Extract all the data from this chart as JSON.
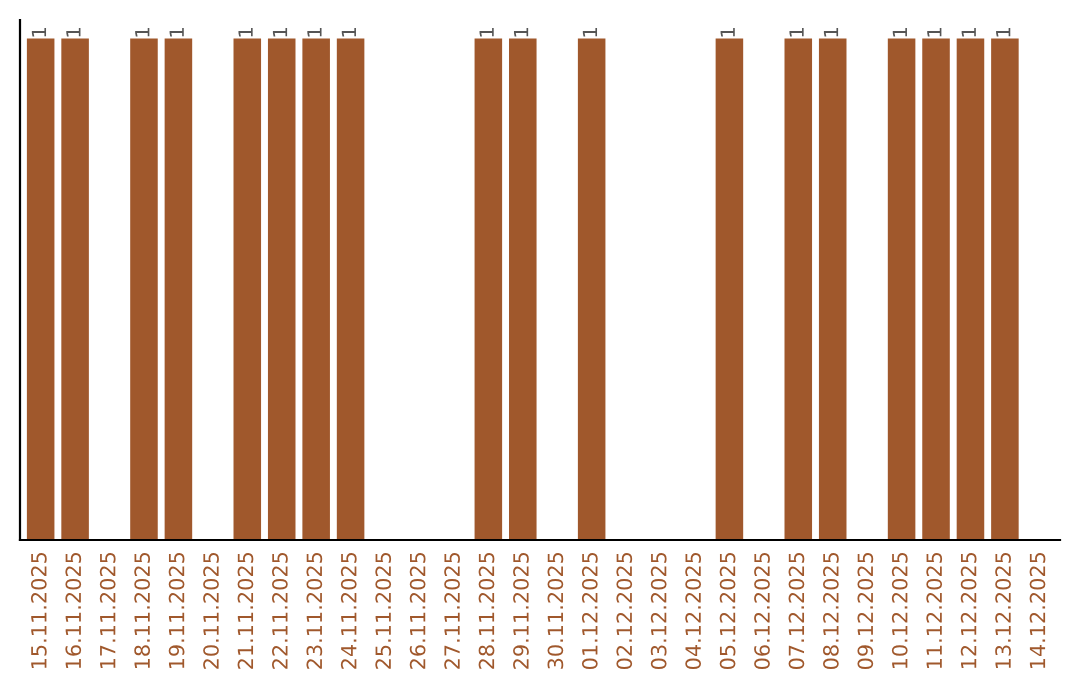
{
  "chart_data": {
    "type": "bar",
    "categories": [
      "15.11.2025",
      "16.11.2025",
      "17.11.2025",
      "18.11.2025",
      "19.11.2025",
      "20.11.2025",
      "21.11.2025",
      "22.11.2025",
      "23.11.2025",
      "24.11.2025",
      "25.11.2025",
      "26.11.2025",
      "27.11.2025",
      "28.11.2025",
      "29.11.2025",
      "30.11.2025",
      "01.12.2025",
      "02.12.2025",
      "03.12.2025",
      "04.12.2025",
      "05.12.2025",
      "06.12.2025",
      "07.12.2025",
      "08.12.2025",
      "09.12.2025",
      "10.12.2025",
      "11.12.2025",
      "12.12.2025",
      "13.12.2025",
      "14.12.2025"
    ],
    "values": [
      1,
      1,
      null,
      1,
      1,
      null,
      1,
      1,
      1,
      1,
      null,
      null,
      null,
      1,
      1,
      null,
      1,
      null,
      null,
      null,
      1,
      null,
      1,
      1,
      null,
      1,
      1,
      1,
      1,
      null
    ],
    "color": "#a0582c",
    "data_labels": true,
    "grid": false,
    "legend": false
  }
}
